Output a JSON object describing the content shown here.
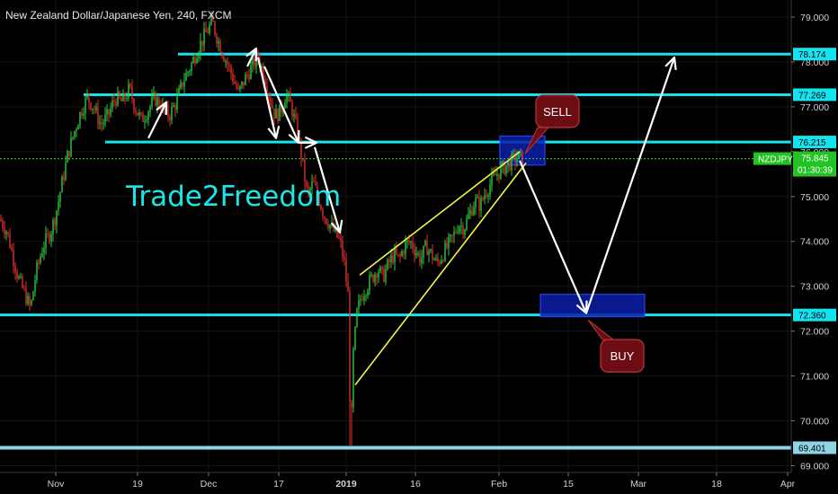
{
  "chart_data": {
    "type": "candlestick",
    "title": "New Zealand Dollar/Japanese Yen, 240, FXCM",
    "watermark": "Trade2Freedom",
    "symbol_tag": "NZDJPY",
    "last_price": "75.845",
    "countdown": "01:30:39",
    "ylim": [
      68.85,
      79.3
    ],
    "xlim": [
      0,
      880
    ],
    "y_ticks": [
      "79.000",
      "78.000",
      "77.000",
      "76.000",
      "75.000",
      "74.000",
      "73.000",
      "72.000",
      "71.000",
      "70.000",
      "69.000"
    ],
    "x_ticks": [
      {
        "label": "Nov",
        "x": 62
      },
      {
        "label": "19",
        "x": 153
      },
      {
        "label": "Dec",
        "x": 232
      },
      {
        "label": "17",
        "x": 310
      },
      {
        "label": "2019",
        "x": 385
      },
      {
        "label": "16",
        "x": 462
      },
      {
        "label": "Feb",
        "x": 555
      },
      {
        "label": "15",
        "x": 632
      },
      {
        "label": "Mar",
        "x": 710
      },
      {
        "label": "18",
        "x": 797
      },
      {
        "label": "Apr",
        "x": 876
      }
    ],
    "levels": [
      {
        "price": 78.174,
        "label": "78.174",
        "x_from": 198
      },
      {
        "price": 77.269,
        "label": "77.269",
        "x_from": 93
      },
      {
        "price": 76.215,
        "label": "76.215",
        "x_from": 117
      },
      {
        "price": 72.36,
        "label": "72.360",
        "x_from": 0
      },
      {
        "price": 69.401,
        "label": "69.401",
        "x_from": 0
      }
    ],
    "price_path": [
      [
        0,
        74.5
      ],
      [
        8,
        74.2
      ],
      [
        14,
        73.7
      ],
      [
        20,
        73.2
      ],
      [
        28,
        72.8
      ],
      [
        34,
        72.5
      ],
      [
        40,
        73.3
      ],
      [
        48,
        73.9
      ],
      [
        56,
        74.2
      ],
      [
        62,
        74.6
      ],
      [
        68,
        75.2
      ],
      [
        75,
        75.9
      ],
      [
        82,
        76.4
      ],
      [
        90,
        76.9
      ],
      [
        97,
        77.2
      ],
      [
        104,
        77.0
      ],
      [
        112,
        76.6
      ],
      [
        120,
        76.8
      ],
      [
        128,
        77.2
      ],
      [
        136,
        77.1
      ],
      [
        144,
        77.4
      ],
      [
        150,
        77.0
      ],
      [
        157,
        76.7
      ],
      [
        164,
        76.9
      ],
      [
        172,
        77.2
      ],
      [
        180,
        77.0
      ],
      [
        188,
        76.8
      ],
      [
        196,
        77.1
      ],
      [
        204,
        77.6
      ],
      [
        212,
        77.9
      ],
      [
        220,
        78.3
      ],
      [
        228,
        78.6
      ],
      [
        236,
        78.9
      ],
      [
        242,
        78.5
      ],
      [
        250,
        78.1
      ],
      [
        258,
        77.7
      ],
      [
        265,
        77.3
      ],
      [
        272,
        77.6
      ],
      [
        280,
        77.9
      ],
      [
        287,
        78.1
      ],
      [
        294,
        77.7
      ],
      [
        300,
        77.2
      ],
      [
        306,
        76.8
      ],
      [
        312,
        76.9
      ],
      [
        318,
        77.3
      ],
      [
        324,
        77.0
      ],
      [
        330,
        76.5
      ],
      [
        336,
        75.8
      ],
      [
        342,
        75.0
      ],
      [
        348,
        75.3
      ],
      [
        354,
        75.0
      ],
      [
        360,
        74.6
      ],
      [
        366,
        74.4
      ],
      [
        372,
        74.2
      ],
      [
        378,
        74.0
      ],
      [
        383,
        73.5
      ],
      [
        387,
        72.8
      ],
      [
        390,
        69.45
      ],
      [
        393,
        71.5
      ],
      [
        397,
        72.4
      ],
      [
        402,
        72.8
      ],
      [
        408,
        73.0
      ],
      [
        414,
        73.2
      ],
      [
        420,
        73.4
      ],
      [
        426,
        73.2
      ],
      [
        432,
        73.5
      ],
      [
        438,
        73.7
      ],
      [
        444,
        73.6
      ],
      [
        450,
        73.9
      ],
      [
        456,
        74.0
      ],
      [
        462,
        73.8
      ],
      [
        468,
        73.6
      ],
      [
        474,
        73.9
      ],
      [
        480,
        73.7
      ],
      [
        486,
        73.5
      ],
      [
        492,
        73.7
      ],
      [
        498,
        73.9
      ],
      [
        504,
        74.1
      ],
      [
        510,
        74.4
      ],
      [
        516,
        74.3
      ],
      [
        522,
        74.6
      ],
      [
        528,
        74.9
      ],
      [
        534,
        74.8
      ],
      [
        540,
        75.1
      ],
      [
        546,
        75.3
      ],
      [
        552,
        75.5
      ],
      [
        558,
        75.6
      ],
      [
        564,
        75.7
      ],
      [
        570,
        75.8
      ],
      [
        576,
        75.9
      ],
      [
        582,
        75.85
      ]
    ],
    "trendlines": [
      [
        [
          400,
          73.25
        ],
        [
          578,
          76.0
        ]
      ],
      [
        [
          395,
          70.8
        ],
        [
          585,
          75.75
        ]
      ]
    ],
    "arrows": [
      [
        [
          165,
          76.3
        ],
        [
          185,
          77.1
        ]
      ],
      [
        [
          275,
          77.9
        ],
        [
          285,
          78.3
        ]
      ],
      [
        [
          287,
          78.1
        ],
        [
          307,
          76.3
        ]
      ],
      [
        [
          294,
          77.9
        ],
        [
          332,
          76.2
        ]
      ],
      [
        [
          333,
          76.2
        ],
        [
          352,
          76.2
        ]
      ],
      [
        [
          350,
          76.1
        ],
        [
          378,
          74.2
        ]
      ],
      [
        [
          578,
          75.8
        ],
        [
          652,
          72.4
        ]
      ],
      [
        [
          652,
          72.4
        ],
        [
          750,
          78.1
        ]
      ]
    ],
    "zones": [
      {
        "x1": 556,
        "x2": 606,
        "y_top": 76.35,
        "y_bottom": 75.7
      },
      {
        "x1": 601,
        "x2": 717,
        "y_top": 72.82,
        "y_bottom": 72.32
      }
    ],
    "callouts": [
      {
        "text": "SELL",
        "x": 620,
        "y": 76.9,
        "target_x": 584,
        "target_y": 75.95
      },
      {
        "text": "BUY",
        "x": 692,
        "y": 71.45,
        "target_x": 654,
        "target_y": 72.25
      }
    ]
  }
}
